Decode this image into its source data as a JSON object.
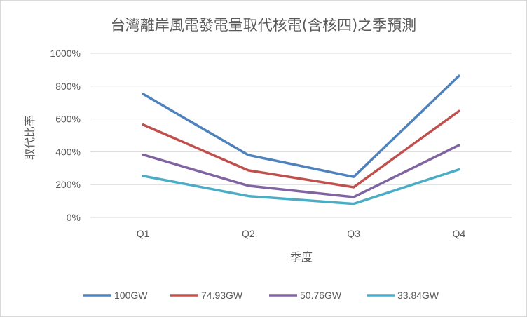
{
  "chart_data": {
    "type": "line",
    "title": "台灣離岸風電發電量取代核電(含核四)之季預測",
    "xlabel": "季度",
    "ylabel": "取代比率",
    "categories": [
      "Q1",
      "Q2",
      "Q3",
      "Q4"
    ],
    "ylim": [
      0,
      1000
    ],
    "ytick_step": 200,
    "y_unit": "%",
    "grid": true,
    "legend_position": "bottom",
    "series": [
      {
        "name": "100GW",
        "color": "#4f81bd",
        "values": [
          752,
          380,
          247,
          862
        ]
      },
      {
        "name": "74.93GW",
        "color": "#c0504d",
        "values": [
          565,
          287,
          184,
          648
        ]
      },
      {
        "name": "50.76GW",
        "color": "#8064a2",
        "values": [
          382,
          193,
          124,
          440
        ]
      },
      {
        "name": "33.84GW",
        "color": "#4bacc6",
        "values": [
          253,
          130,
          83,
          292
        ]
      }
    ]
  }
}
